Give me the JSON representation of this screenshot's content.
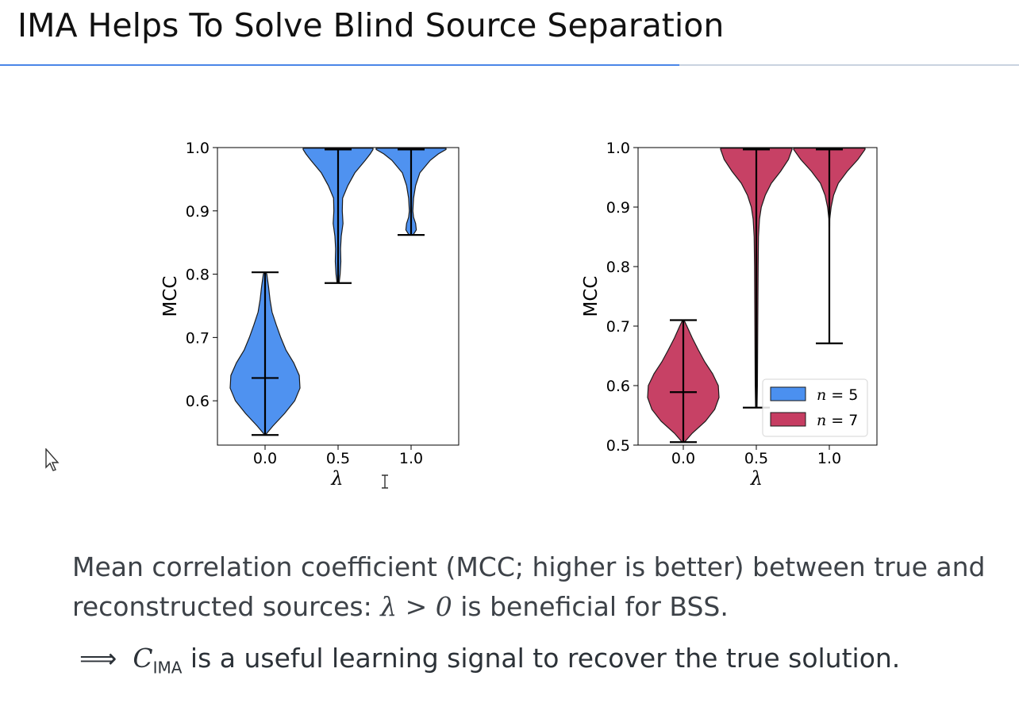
{
  "slide": {
    "title": "IMA Helps To Solve Blind Source Separation"
  },
  "caption": {
    "text_before": "Mean correlation coefficient (MCC; higher is better) between true and reconstructed sources: ",
    "math": "λ > 0",
    "text_after": " is beneficial for BSS."
  },
  "conclusion": {
    "arrow": "⟹",
    "symbol": "C",
    "subscript": "IMA",
    "text": " is a useful learning signal to recover the true solution."
  },
  "colors": {
    "n5": "#4b90f0",
    "n7": "#c63d62",
    "line": "#000000",
    "accent_rule": "#4a86e8"
  },
  "chart_data": [
    {
      "type": "violin",
      "xlabel": "λ",
      "ylabel": "MCC",
      "categories": [
        "0.0",
        "0.5",
        "1.0"
      ],
      "ylim": [
        0.53,
        1.0
      ],
      "yticks": [
        0.6,
        0.7,
        0.8,
        0.9,
        1.0
      ],
      "ytick_labels": [
        "0.6",
        "0.7",
        "0.8",
        "0.9",
        "1.0"
      ],
      "color": "#4b90f0",
      "series": [
        {
          "category": "0.0",
          "min": 0.546,
          "max": 0.803,
          "median": 0.636,
          "density": [
            [
              0.546,
              0.01
            ],
            [
              0.56,
              0.22
            ],
            [
              0.58,
              0.56
            ],
            [
              0.6,
              0.85
            ],
            [
              0.62,
              1.0
            ],
            [
              0.64,
              0.98
            ],
            [
              0.66,
              0.82
            ],
            [
              0.68,
              0.6
            ],
            [
              0.7,
              0.45
            ],
            [
              0.72,
              0.32
            ],
            [
              0.74,
              0.2
            ],
            [
              0.76,
              0.14
            ],
            [
              0.78,
              0.1
            ],
            [
              0.8,
              0.05
            ],
            [
              0.803,
              0.02
            ]
          ]
        },
        {
          "category": "0.5",
          "min": 0.786,
          "max": 0.997,
          "median": 0.997,
          "density": [
            [
              0.786,
              0.03
            ],
            [
              0.8,
              0.06
            ],
            [
              0.82,
              0.08
            ],
            [
              0.84,
              0.07
            ],
            [
              0.86,
              0.09
            ],
            [
              0.88,
              0.14
            ],
            [
              0.9,
              0.12
            ],
            [
              0.92,
              0.13
            ],
            [
              0.94,
              0.28
            ],
            [
              0.96,
              0.48
            ],
            [
              0.98,
              0.78
            ],
            [
              0.99,
              0.92
            ],
            [
              0.997,
              1.0
            ],
            [
              0.999,
              1.0
            ]
          ]
        },
        {
          "category": "1.0",
          "min": 0.862,
          "max": 0.997,
          "median": 0.997,
          "density": [
            [
              0.862,
              0.06
            ],
            [
              0.87,
              0.15
            ],
            [
              0.88,
              0.13
            ],
            [
              0.89,
              0.07
            ],
            [
              0.9,
              0.05
            ],
            [
              0.92,
              0.07
            ],
            [
              0.94,
              0.13
            ],
            [
              0.96,
              0.25
            ],
            [
              0.98,
              0.55
            ],
            [
              0.99,
              0.78
            ],
            [
              0.997,
              1.0
            ],
            [
              0.999,
              1.0
            ]
          ]
        }
      ]
    },
    {
      "type": "violin",
      "xlabel": "λ",
      "ylabel": "MCC",
      "categories": [
        "0.0",
        "0.5",
        "1.0"
      ],
      "ylim": [
        0.5,
        1.0
      ],
      "yticks": [
        0.5,
        0.6,
        0.7,
        0.8,
        0.9,
        1.0
      ],
      "ytick_labels": [
        "0.5",
        "0.6",
        "0.7",
        "0.8",
        "0.9",
        "1.0"
      ],
      "color": "#c63d62",
      "legend": {
        "position": "lower-right",
        "entries": [
          {
            "var": "n",
            "op": " = ",
            "value": "5",
            "color": "#4b90f0"
          },
          {
            "var": "n",
            "op": " = ",
            "value": "7",
            "color": "#c63d62"
          }
        ]
      },
      "series": [
        {
          "category": "0.0",
          "min": 0.505,
          "max": 0.71,
          "median": 0.589,
          "density": [
            [
              0.505,
              0.03
            ],
            [
              0.52,
              0.25
            ],
            [
              0.54,
              0.62
            ],
            [
              0.56,
              0.88
            ],
            [
              0.58,
              1.0
            ],
            [
              0.6,
              0.98
            ],
            [
              0.62,
              0.82
            ],
            [
              0.64,
              0.6
            ],
            [
              0.66,
              0.42
            ],
            [
              0.68,
              0.25
            ],
            [
              0.7,
              0.1
            ],
            [
              0.71,
              0.02
            ]
          ]
        },
        {
          "category": "0.5",
          "min": 0.563,
          "max": 0.997,
          "median": 0.997,
          "density": [
            [
              0.563,
              0.02
            ],
            [
              0.6,
              0.03
            ],
            [
              0.7,
              0.04
            ],
            [
              0.8,
              0.05
            ],
            [
              0.85,
              0.06
            ],
            [
              0.88,
              0.09
            ],
            [
              0.9,
              0.14
            ],
            [
              0.92,
              0.25
            ],
            [
              0.94,
              0.42
            ],
            [
              0.96,
              0.68
            ],
            [
              0.98,
              0.9
            ],
            [
              0.997,
              1.0
            ],
            [
              0.999,
              1.0
            ]
          ]
        },
        {
          "category": "1.0",
          "min": 0.671,
          "max": 0.997,
          "median": 0.997,
          "density": [
            [
              0.671,
              0.0
            ],
            [
              0.8,
              0.0
            ],
            [
              0.88,
              0.01
            ],
            [
              0.9,
              0.05
            ],
            [
              0.92,
              0.12
            ],
            [
              0.94,
              0.25
            ],
            [
              0.96,
              0.5
            ],
            [
              0.98,
              0.8
            ],
            [
              0.997,
              1.0
            ],
            [
              0.999,
              1.0
            ]
          ]
        }
      ]
    }
  ]
}
